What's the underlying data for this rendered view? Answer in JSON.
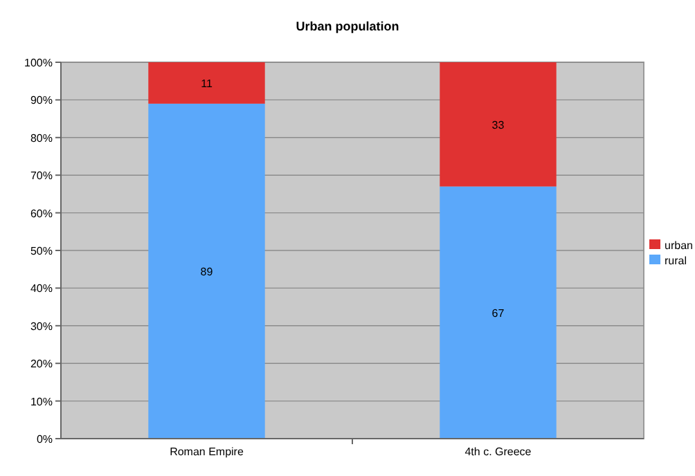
{
  "chart_data": {
    "type": "bar",
    "title": "Urban population",
    "categories": [
      "Roman Empire",
      "4th c. Greece"
    ],
    "stacked": true,
    "data_labels": true,
    "grid": "y",
    "legend": "right",
    "series": [
      {
        "name": "rural",
        "color": "#5ba8fa",
        "values": [
          89,
          67
        ]
      },
      {
        "name": "urban",
        "color": "#e03232",
        "values": [
          11,
          33
        ]
      }
    ],
    "ylim": [
      0,
      100
    ],
    "yticks": [
      {
        "value": 0,
        "label": "0%"
      },
      {
        "value": 10,
        "label": "10%"
      },
      {
        "value": 20,
        "label": "20%"
      },
      {
        "value": 30,
        "label": "30%"
      },
      {
        "value": 40,
        "label": "40%"
      },
      {
        "value": 50,
        "label": "50%"
      },
      {
        "value": 60,
        "label": "60%"
      },
      {
        "value": 70,
        "label": "70%"
      },
      {
        "value": 80,
        "label": "80%"
      },
      {
        "value": 90,
        "label": "90%"
      },
      {
        "value": 100,
        "label": "100%"
      }
    ]
  }
}
